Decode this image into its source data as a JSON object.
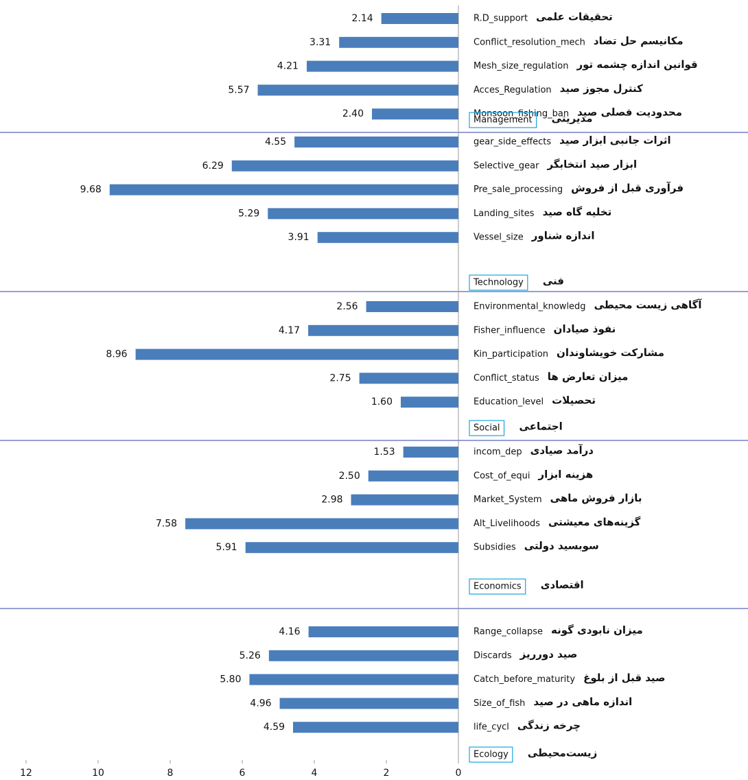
{
  "chart_data": {
    "type": "bar",
    "orientation": "horizontal",
    "x_reversed": true,
    "color": "#4a7ebb",
    "box_color": "#1aa3e0",
    "separator_color": "#2e3fa8",
    "xlim": [
      0,
      12
    ],
    "xticks": [
      0,
      2,
      4,
      6,
      8,
      10,
      12
    ],
    "groups": [
      {
        "name": "Management",
        "name_fa": "مدیریتی",
        "categories": [
          "R.D_support",
          "Conflict_resolution_mech",
          "Mesh_size_regulation",
          "Acces_Regulation",
          "Monsoon_fishing_ban"
        ],
        "categories_fa": [
          "تحقیقات علمی",
          "مکانیسم حل تضاد",
          "قوانین اندازه چشمه تور",
          "کنترل مجوز صید",
          "محدودیت فصلی صید"
        ],
        "values": [
          2.14,
          3.31,
          4.21,
          5.57,
          2.4
        ],
        "value_labels": [
          "2.14",
          "3.31",
          "4.21",
          "5.57",
          "2.40"
        ]
      },
      {
        "name": "Technology",
        "name_fa": "فنی",
        "categories": [
          "gear_side_effects",
          "Selective_gear",
          "Pre_sale_processing",
          "Landing_sites",
          "Vessel_size"
        ],
        "categories_fa": [
          "اثرات جانبی ابزار صید",
          "ابزار صید انتخابگر",
          "فرآوری قبل از فروش",
          "تخلیه گاه صید",
          "اندازه شناور"
        ],
        "values": [
          4.55,
          6.29,
          9.68,
          5.29,
          3.91
        ],
        "value_labels": [
          "4.55",
          "6.29",
          "9.68",
          "5.29",
          "3.91"
        ]
      },
      {
        "name": "Social",
        "name_fa": "اجتماعی",
        "categories": [
          "Environmental_knowledg",
          "Fisher_influence",
          "Kin_participation",
          "Conflict_status",
          "Education_level"
        ],
        "categories_fa": [
          "آگاهی زیست محیطی",
          "نفوذ صیادان",
          "مشارکت خویشاوندان",
          "میزان تعارض ها",
          "تحصیلات"
        ],
        "values": [
          2.56,
          4.17,
          8.96,
          2.75,
          1.6
        ],
        "value_labels": [
          "2.56",
          "4.17",
          "8.96",
          "2.75",
          "1.60"
        ]
      },
      {
        "name": "Economics",
        "name_fa": "اقتصادی",
        "categories": [
          "incom_dep",
          "Cost_of_equi",
          "Market_System",
          "Alt_Livelihoods",
          "Subsidies"
        ],
        "categories_fa": [
          "درآمد صیادی",
          "هزینه ابزار",
          "بازار فروش ماهی",
          "گزینه‌های معیشتی",
          "سوبسید دولتی"
        ],
        "values": [
          1.53,
          2.5,
          2.98,
          7.58,
          5.91
        ],
        "value_labels": [
          "1.53",
          "2.50",
          "2.98",
          "7.58",
          "5.91"
        ]
      },
      {
        "name": "Ecology",
        "name_fa": "زیست‌محیطی",
        "categories": [
          "Range_collapse",
          "Discards",
          "Catch_before_maturity",
          "Size_of_fish",
          "life_cycl"
        ],
        "categories_fa": [
          "میزان نابودی گونه",
          "صید دورریز",
          "صید قبل از بلوغ",
          "اندازه ماهی در صید",
          "چرخه زندگی"
        ],
        "values": [
          4.16,
          5.26,
          5.8,
          4.96,
          4.59
        ],
        "value_labels": [
          "4.16",
          "5.26",
          "5.80",
          "4.96",
          "4.59"
        ]
      }
    ]
  }
}
